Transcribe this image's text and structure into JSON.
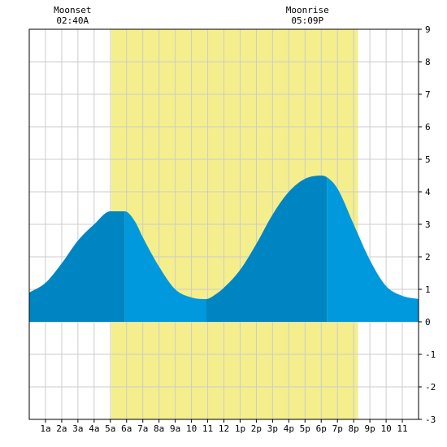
{
  "chart_data": {
    "type": "area",
    "title": "",
    "xlabel": "",
    "ylabel": "",
    "x_range": [
      0,
      24
    ],
    "ylim": [
      -3,
      9
    ],
    "y_ticks": [
      -3,
      -2,
      -1,
      0,
      1,
      2,
      3,
      4,
      5,
      6,
      7,
      8,
      9
    ],
    "x_tick_labels": [
      "1a",
      "2a",
      "3a",
      "4a",
      "5a",
      "6a",
      "7a",
      "8a",
      "9a",
      "10",
      "11",
      "12",
      "1p",
      "2p",
      "3p",
      "4p",
      "5p",
      "6p",
      "7p",
      "8p",
      "9p",
      "10",
      "11"
    ],
    "grid": true,
    "daylight": {
      "start_hour": 5.05,
      "end_hour": 20.27
    },
    "annotations": [
      {
        "label": "Moonset",
        "time": "02:40A",
        "hour": 2.67
      },
      {
        "label": "Moonrise",
        "time": "05:09P",
        "hour": 17.15
      }
    ],
    "tide_extremes": [
      {
        "hour": 5.9,
        "value": 3.4,
        "kind": "high"
      },
      {
        "hour": 10.9,
        "value": 0.7,
        "kind": "low"
      },
      {
        "hour": 18.35,
        "value": 4.5,
        "kind": "high"
      }
    ],
    "series": [
      {
        "x": [
          0,
          1,
          2,
          3,
          4,
          5,
          5.9,
          6.5,
          7,
          8,
          9,
          10,
          10.9,
          11.5,
          12,
          13,
          14,
          15,
          16,
          17,
          18,
          18.35,
          19,
          20,
          21,
          22,
          23,
          24
        ],
        "values": [
          0.9,
          1.2,
          1.8,
          2.5,
          3.0,
          3.4,
          3.4,
          3.1,
          2.6,
          1.7,
          1.0,
          0.75,
          0.7,
          0.85,
          1.05,
          1.6,
          2.4,
          3.3,
          4.0,
          4.4,
          4.5,
          4.45,
          4.1,
          3.0,
          1.9,
          1.1,
          0.8,
          0.7
        ]
      }
    ],
    "segment_boundaries": [
      0,
      5.9,
      10.9,
      18.35,
      24
    ],
    "colors": {
      "tide_rising": "#0085C3",
      "tide_falling": "#0099DD",
      "daylight": "#F5EE8C",
      "grid": "#CCCCCC",
      "axis": "#000000"
    }
  }
}
